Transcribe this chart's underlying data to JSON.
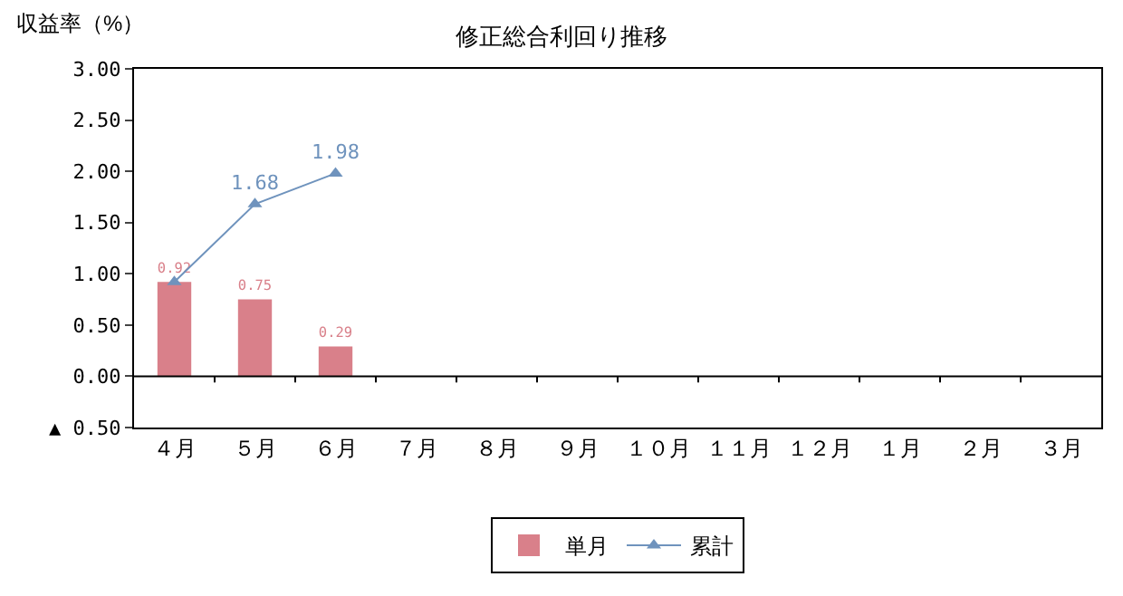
{
  "chart_data": {
    "type": "bar",
    "title": "修正総合利回り推移",
    "ylabel": "収益率（%）",
    "categories": [
      "４月",
      "５月",
      "６月",
      "７月",
      "８月",
      "９月",
      "１０月",
      "１１月",
      "１２月",
      "１月",
      "２月",
      "３月"
    ],
    "series": [
      {
        "name": "単月",
        "color": "#d9808a",
        "values": [
          0.92,
          0.75,
          0.29,
          null,
          null,
          null,
          null,
          null,
          null,
          null,
          null,
          null
        ],
        "value_labels": [
          "0.92",
          "0.75",
          "0.29",
          null,
          null,
          null,
          null,
          null,
          null,
          null,
          null,
          null
        ]
      },
      {
        "name": "累計",
        "type": "line",
        "color": "#6f93bd",
        "marker": "triangle",
        "values": [
          0.92,
          1.68,
          1.98,
          null,
          null,
          null,
          null,
          null,
          null,
          null,
          null,
          null
        ],
        "value_labels": [
          null,
          "1.68",
          "1.98",
          null,
          null,
          null,
          null,
          null,
          null,
          null,
          null,
          null
        ]
      }
    ],
    "ylim": [
      -0.5,
      3
    ],
    "yticks": [
      {
        "value": -0.5,
        "label": "▲ 0.50"
      },
      {
        "value": 0,
        "label": "0.00"
      },
      {
        "value": 0.5,
        "label": "0.50"
      },
      {
        "value": 1,
        "label": "1.00"
      },
      {
        "value": 1.5,
        "label": "1.50"
      },
      {
        "value": 2,
        "label": "2.00"
      },
      {
        "value": 2.5,
        "label": "2.50"
      },
      {
        "value": 3,
        "label": "3.00"
      }
    ],
    "ref_lines": [
      {
        "axis": "y",
        "value": 0,
        "color": "#000000"
      }
    ],
    "grid": false,
    "legend": "bottom"
  }
}
